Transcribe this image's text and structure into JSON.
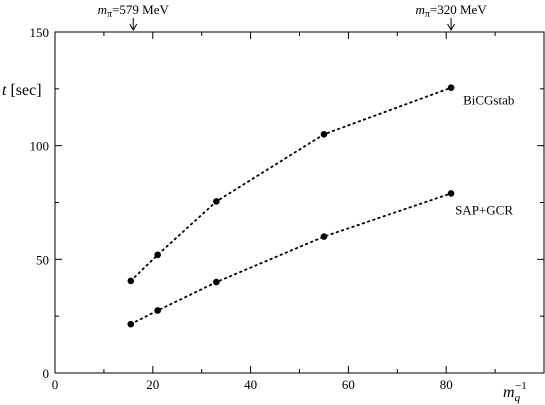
{
  "chart_data": {
    "type": "line",
    "xlabel": "m_q^{-1}",
    "ylabel": "t [sec]",
    "xlim": [
      0,
      100
    ],
    "ylim": [
      0,
      150
    ],
    "x_ticks": [
      0,
      20,
      40,
      60,
      80
    ],
    "y_ticks": [
      0,
      50,
      100,
      150
    ],
    "grid": false,
    "series": [
      {
        "name": "BiCGstab",
        "x": [
          15.5,
          21,
          33,
          55,
          81
        ],
        "y": [
          40.5,
          52,
          75.5,
          105,
          125.5
        ]
      },
      {
        "name": "SAP+GCR",
        "x": [
          15.5,
          21,
          33,
          55,
          81
        ],
        "y": [
          21.5,
          27.5,
          40,
          60,
          79
        ]
      }
    ],
    "annotations": [
      {
        "x": 16,
        "text_var": "m",
        "text_sub": "π",
        "text_rest": "=579 MeV"
      },
      {
        "x": 81,
        "text_var": "m",
        "text_sub": "π",
        "text_rest": "=320 MeV"
      }
    ]
  }
}
